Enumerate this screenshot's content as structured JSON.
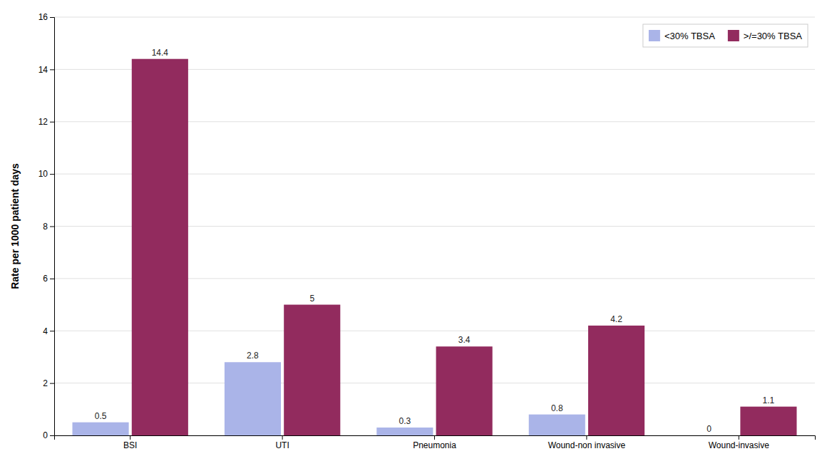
{
  "chart_data": {
    "type": "bar",
    "categories": [
      "BSI",
      "UTI",
      "Pneumonia",
      "Wound-non invasive",
      "Wound-invasive"
    ],
    "series": [
      {
        "name": "<30% TBSA",
        "color": "#aab4e8",
        "values": [
          0.5,
          2.8,
          0.3,
          0.8,
          0.0
        ]
      },
      {
        "name": ">/=30% TBSA",
        "color": "#922b5e",
        "values": [
          14.4,
          5.0,
          3.4,
          4.2,
          1.1
        ]
      }
    ],
    "y_label": "Rate per 1000 patient days",
    "ylim": [
      0,
      16
    ],
    "yticks": [
      0,
      2,
      4,
      6,
      8,
      10,
      12,
      14,
      16
    ],
    "grid": true,
    "legend": "upper right",
    "data_labels": true
  }
}
